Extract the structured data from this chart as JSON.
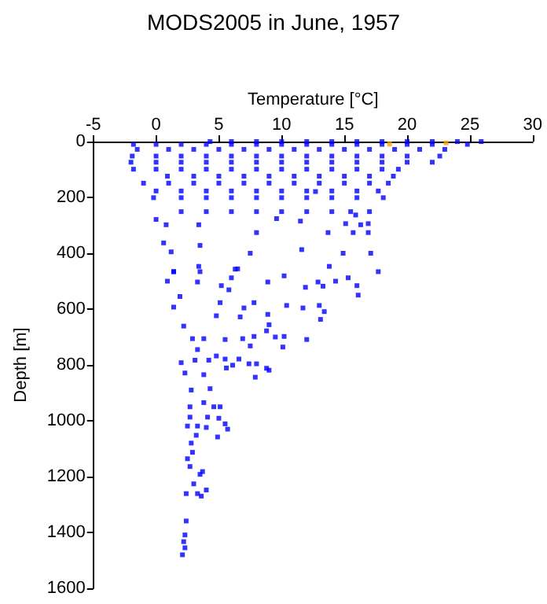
{
  "chart_data": {
    "type": "scatter",
    "title": "MODS2005 in June, 1957",
    "xlabel": "Temperature [°C]",
    "ylabel": "Depth [m]",
    "xlim": [
      -5,
      30
    ],
    "xticks": [
      -5,
      0,
      5,
      10,
      15,
      20,
      25,
      30
    ],
    "ylim": [
      1600,
      0
    ],
    "yticks": [
      0,
      200,
      400,
      600,
      800,
      1000,
      1200,
      1400,
      1600
    ],
    "grid": false,
    "marker": "square",
    "series": [
      {
        "color": "#0000ff",
        "x": [
          4.3,
          6,
          8,
          10,
          12,
          14,
          16,
          18,
          20,
          22,
          24,
          25.9,
          -1.8,
          0,
          2,
          4,
          6,
          8,
          10,
          12,
          14,
          16,
          18,
          20,
          22,
          24.8,
          -1.5,
          1,
          3,
          5,
          7,
          9,
          11,
          13,
          15,
          17,
          19,
          21,
          23,
          -1.9,
          0,
          2,
          4,
          6,
          8,
          10,
          12,
          14,
          16,
          18,
          20,
          22.6,
          -2,
          0,
          2,
          4,
          6,
          8,
          10,
          12,
          14,
          16,
          18,
          20,
          22,
          -1.8,
          0,
          2,
          4,
          6,
          8,
          10,
          12,
          14,
          16,
          18,
          19.3,
          0.9,
          3,
          5,
          7,
          9,
          11,
          13,
          15,
          17,
          18.9,
          -1,
          1,
          3,
          5,
          7,
          9,
          11,
          13,
          15,
          17,
          18.5,
          0,
          2,
          4,
          6,
          8,
          10,
          12,
          14,
          16,
          17.7,
          -0.2,
          2,
          4,
          6,
          8,
          10,
          12,
          14,
          16,
          18.1,
          2,
          4,
          6,
          8,
          10,
          12,
          14,
          15.5,
          17,
          0,
          0.8,
          0.6,
          1.2,
          3.4,
          3.5,
          3.4,
          9.6,
          8,
          11.5,
          13.7,
          15.1,
          16.3,
          16.9,
          15.7,
          16.9,
          15.9,
          12.7,
          17.1,
          11.6,
          14.9,
          13.8,
          7.5,
          6.5,
          1.4,
          0.9,
          1.4,
          1.9,
          1.4,
          2.2,
          3.3,
          3.5,
          6.3,
          6,
          5.2,
          5.8,
          5.1,
          4.8,
          6.7,
          7,
          7.8,
          8.9,
          10.2,
          10.4,
          8.9,
          9,
          8.8,
          9.5,
          10.2,
          10.1,
          11.9,
          11.7,
          12,
          12.9,
          13.3,
          14.3,
          15.3,
          16,
          16.1,
          17.7,
          13.1,
          13.4,
          13,
          5.5,
          6.9,
          7.8,
          7.5,
          3.8,
          2.9,
          3.3,
          2,
          2.3,
          3.1,
          3.8,
          4.2,
          4.8,
          5.5,
          5.6,
          6.1,
          6.6,
          7.4,
          8,
          7.9,
          8.8,
          9,
          4.3,
          2.8,
          3.8,
          2.7,
          4.6,
          5.1,
          2.7,
          4.1,
          5,
          5.5,
          5.7,
          2.5,
          3.3,
          4,
          4.9,
          3.2,
          2.8,
          2.9,
          2.5,
          2.7,
          3.7,
          3.5,
          4,
          2.4,
          3.3,
          3.6,
          3,
          2.4,
          2.3,
          2.2,
          2.3,
          2.1
        ],
        "values": [
          0,
          0,
          0,
          0,
          0,
          0,
          0,
          0,
          0,
          0,
          0,
          0,
          10,
          10,
          10,
          10,
          10,
          10,
          10,
          10,
          10,
          10,
          10,
          10,
          10,
          10,
          28,
          28,
          28,
          28,
          28,
          28,
          28,
          28,
          28,
          28,
          28,
          28,
          28,
          52,
          52,
          52,
          52,
          52,
          52,
          52,
          52,
          52,
          52,
          52,
          52,
          52,
          74,
          74,
          74,
          74,
          74,
          74,
          74,
          74,
          74,
          74,
          74,
          74,
          74,
          99,
          99,
          99,
          99,
          99,
          99,
          99,
          99,
          99,
          99,
          99,
          99,
          124,
          124,
          124,
          124,
          124,
          124,
          124,
          124,
          124,
          124,
          149,
          149,
          149,
          149,
          149,
          149,
          149,
          149,
          149,
          149,
          149,
          177,
          177,
          177,
          177,
          177,
          177,
          177,
          177,
          177,
          177,
          201,
          201,
          201,
          201,
          201,
          201,
          201,
          201,
          201,
          201,
          251,
          251,
          251,
          251,
          251,
          251,
          251,
          251,
          251,
          279,
          298,
          363,
          395,
          298,
          372,
          447,
          276,
          326,
          285,
          326,
          294,
          298,
          294,
          326,
          326,
          263,
          179,
          400,
          387,
          400,
          447,
          400,
          456,
          466,
          500,
          466,
          555,
          593,
          661,
          503,
          466,
          457,
          488,
          516,
          531,
          577,
          624,
          628,
          596,
          577,
          503,
          481,
          587,
          619,
          656,
          678,
          700,
          698,
          736,
          522,
          596,
          709,
          503,
          518,
          500,
          488,
          516,
          550,
          466,
          637,
          609,
          587,
          709,
          706,
          698,
          732,
          706,
          706,
          745,
          792,
          829,
          783,
          835,
          783,
          768,
          779,
          811,
          801,
          779,
          796,
          796,
          844,
          812,
          819,
          885,
          890,
          935,
          950,
          950,
          950,
          987,
          987,
          991,
          1011,
          1030,
          1019,
          1019,
          1024,
          1058,
          1052,
          1080,
          1113,
          1136,
          1164,
          1182,
          1192,
          1248,
          1261,
          1261,
          1270,
          1226,
          1359,
          1409,
          1433,
          1455,
          1480
        ]
      },
      {
        "color": "#ffa500",
        "x": [
          18.6,
          23.1
        ],
        "values": [
          9,
          5
        ]
      }
    ]
  }
}
